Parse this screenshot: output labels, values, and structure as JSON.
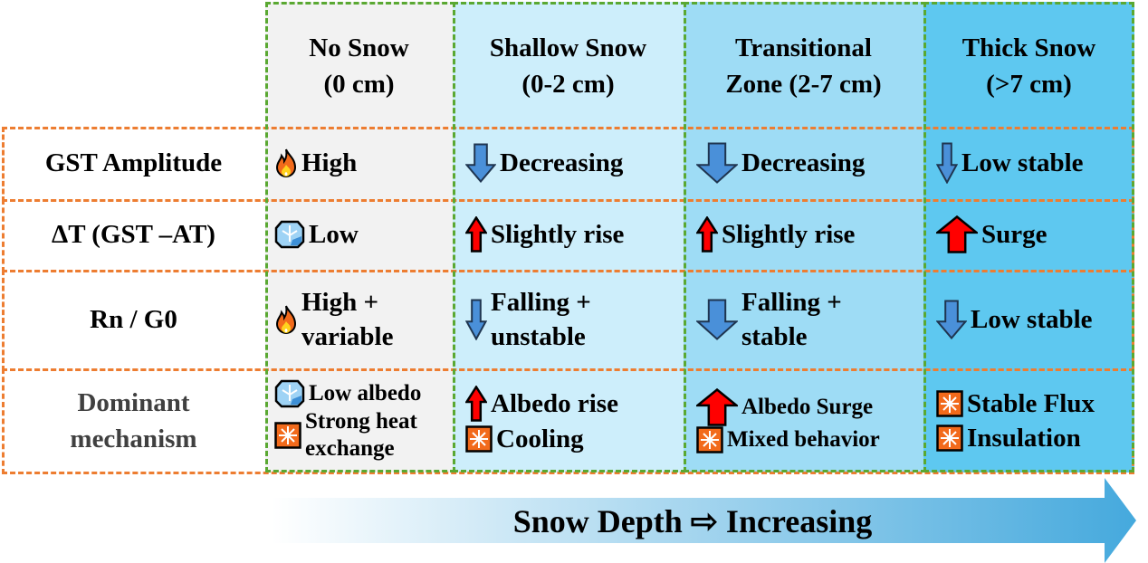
{
  "colors": {
    "col1": "#f2f2f2",
    "col2": "#cdeefb",
    "col3": "#9edcf5",
    "col4": "#5ec8f0",
    "row_border": "#ed7d31",
    "col_border": "#5aa832",
    "arrow_up": "#ff0000",
    "arrow_down": "#4a90d9",
    "star_box": "#f26a1b"
  },
  "columns": [
    "No Snow\n(0 cm)",
    "Shallow Snow\n(0-2 cm)",
    "Transitional\nZone (2-7 cm)",
    "Thick Snow\n(>7 cm)"
  ],
  "rows": [
    {
      "label": "GST Amplitude",
      "cells": [
        {
          "items": [
            {
              "icon": "fire-icon",
              "text": "High"
            }
          ]
        },
        {
          "items": [
            {
              "icon": "arrow-down-icon",
              "size": "m",
              "text": " Decreasing"
            }
          ]
        },
        {
          "items": [
            {
              "icon": "arrow-down-icon",
              "size": "l",
              "text": "Decreasing"
            }
          ]
        },
        {
          "items": [
            {
              "icon": "arrow-down-icon",
              "size": "s",
              "text": " Low stable"
            }
          ]
        }
      ]
    },
    {
      "label": "ΔT (GST –AT)",
      "cells": [
        {
          "items": [
            {
              "icon": "ice-icon",
              "text": "Low"
            }
          ]
        },
        {
          "items": [
            {
              "icon": "arrow-up-icon",
              "size": "s",
              "text": " Slightly rise"
            }
          ]
        },
        {
          "items": [
            {
              "icon": "arrow-up-icon",
              "size": "s",
              "text": " Slightly rise"
            }
          ]
        },
        {
          "items": [
            {
              "icon": "arrow-up-icon",
              "size": "l",
              "text": "Surge"
            }
          ]
        }
      ]
    },
    {
      "label": "Rn / G0",
      "cells": [
        {
          "items": [
            {
              "icon": "fire-icon",
              "text": "High +\nvariable"
            }
          ]
        },
        {
          "items": [
            {
              "icon": "arrow-down-icon",
              "size": "s",
              "text": "   Falling +\n      unstable"
            }
          ]
        },
        {
          "items": [
            {
              "icon": "arrow-down-icon",
              "size": "l",
              "text": "Falling +\n     stable"
            }
          ]
        },
        {
          "items": [
            {
              "icon": "arrow-down-icon",
              "size": "m",
              "text": " Low stable"
            }
          ]
        }
      ]
    },
    {
      "label": "Dominant\nmechanism",
      "cells": [
        {
          "small": true,
          "items": [
            {
              "icon": "ice-icon",
              "text": "Low albedo"
            },
            {
              "icon": "star-box-icon",
              "text": "Strong heat\n exchange"
            }
          ]
        },
        {
          "items": [
            {
              "icon": "arrow-up-icon",
              "size": "s",
              "text": " Albedo rise"
            },
            {
              "icon": "star-box-icon",
              "text": "Cooling"
            }
          ]
        },
        {
          "small": true,
          "items": [
            {
              "icon": "arrow-up-icon",
              "size": "l",
              "text": "Albedo Surge"
            },
            {
              "icon": "star-box-icon",
              "text": "Mixed behavior"
            }
          ]
        },
        {
          "items": [
            {
              "icon": "star-box-icon",
              "text": "Stable Flux"
            },
            {
              "icon": "star-box-icon",
              "text": "Insulation"
            }
          ]
        }
      ]
    }
  ],
  "footer": {
    "text": "Snow Depth  ⇨  Increasing"
  }
}
